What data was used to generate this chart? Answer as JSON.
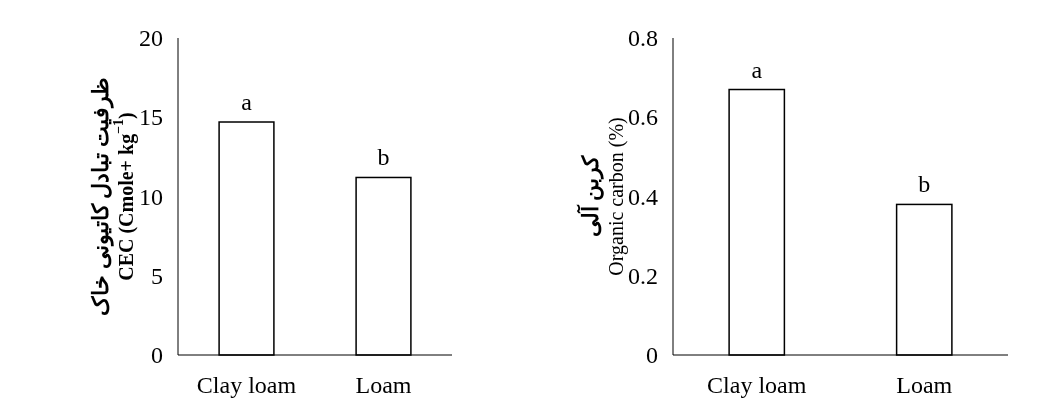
{
  "chart_data": [
    {
      "type": "bar",
      "categories": [
        "Clay loam",
        "Loam"
      ],
      "values": [
        14.7,
        11.2
      ],
      "color": "#ffffff",
      "ylim": [
        0,
        20
      ],
      "yticks": [
        0,
        5,
        10,
        15,
        20
      ],
      "ylabel": "ظرفیت تبادل کاتیونی خاک\nCEC (Cmole+ kg$^{−1}$)",
      "annotations": [
        {
          "text": "a",
          "x": "Clay loam",
          "y": 14.7
        },
        {
          "text": "b",
          "x": "Loam",
          "y": 11.2
        }
      ]
    },
    {
      "type": "bar",
      "categories": [
        "Clay loam",
        "Loam"
      ],
      "values": [
        0.67,
        0.38
      ],
      "color": "#ffffff",
      "ylim": [
        0,
        0.8
      ],
      "yticks": [
        0,
        {
          "value": 0.2,
          "label": "0.2"
        },
        {
          "value": 0.4,
          "label": "0.4"
        },
        {
          "value": 0.6,
          "label": "0.6"
        },
        {
          "value": 0.8,
          "label": "0.8"
        }
      ],
      "ylabel": "کربن آلی\nOrganic carbon (%)",
      "annotations": [
        {
          "text": "a",
          "x": "Clay loam",
          "y": 0.67
        },
        {
          "text": "b",
          "x": "Loam",
          "y": 0.38
        }
      ]
    }
  ]
}
